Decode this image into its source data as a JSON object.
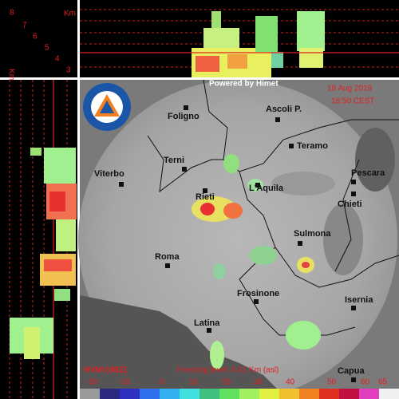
{
  "header": {
    "credit": "Powered by Himet",
    "date": "18 Aug 2019",
    "time": "16:50 CEST"
  },
  "height_axis": {
    "unit": "Km",
    "labels": [
      "8",
      "7",
      "6",
      "5",
      "4",
      "3"
    ]
  },
  "cities": [
    {
      "label": "Foligno"
    },
    {
      "label": "Ascoli P."
    },
    {
      "label": "Teramo"
    },
    {
      "label": "Terni"
    },
    {
      "label": "Viterbo"
    },
    {
      "label": "Pescara"
    },
    {
      "label": "L'Aquila"
    },
    {
      "label": "Rieti"
    },
    {
      "label": "Chieti"
    },
    {
      "label": "Sulmona"
    },
    {
      "label": "Roma"
    },
    {
      "label": "Frosinone"
    },
    {
      "label": "Isernia"
    },
    {
      "label": "Latina"
    },
    {
      "label": "Capua"
    }
  ],
  "legend": {
    "title": "HVMI (dBZ)",
    "freezing_level": "Freezing level: 4.51 Km (asl)",
    "ticks": [
      "-30",
      "-10",
      "0",
      "10",
      "20",
      "30",
      "40",
      "50",
      "60",
      "65"
    ]
  }
}
